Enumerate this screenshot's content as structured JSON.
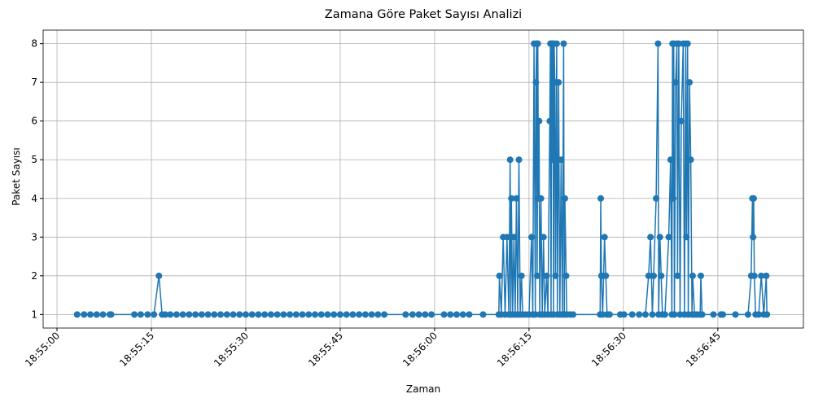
{
  "chart_data": {
    "type": "line",
    "title": "Zamana Göre Paket Sayısı Analizi",
    "x_label": "Zaman",
    "y_label": "Paket Sayısı",
    "x": [
      "18:55:03.2",
      "18:55:04.3",
      "18:55:05.3",
      "18:55:06.3",
      "18:55:07.3",
      "18:55:08.4",
      "18:55:08.6",
      "18:55:12.3",
      "18:55:13.3",
      "18:55:14.4",
      "18:55:15.4",
      "18:55:16.2",
      "18:55:16.7",
      "18:55:17.2",
      "18:55:18",
      "18:55:19",
      "18:55:20",
      "18:55:21",
      "18:55:22",
      "18:55:23",
      "18:55:24",
      "18:55:25",
      "18:55:26",
      "18:55:27",
      "18:55:28",
      "18:55:29",
      "18:55:30",
      "18:55:31",
      "18:55:32",
      "18:55:33",
      "18:55:34",
      "18:55:35",
      "18:55:36",
      "18:55:37",
      "18:55:38",
      "18:55:39",
      "18:55:40",
      "18:55:41",
      "18:55:42",
      "18:55:43",
      "18:55:44",
      "18:55:45",
      "18:55:46",
      "18:55:47",
      "18:55:48",
      "18:55:49",
      "18:55:50",
      "18:55:51",
      "18:55:52",
      "18:55:55.4",
      "18:55:56.5",
      "18:55:57.5",
      "18:55:58.5",
      "18:55:59.5",
      "18:56:01.5",
      "18:56:02.5",
      "18:56:03.5",
      "18:56:04.5",
      "18:56:05.5",
      "18:56:07.7",
      "18:56:10.2",
      "18:56:10.3",
      "18:56:10.6",
      "18:56:10.9",
      "18:56:11.2",
      "18:56:11.5",
      "18:56:11.8",
      "18:56:12.0",
      "18:56:12.1",
      "18:56:12.2",
      "18:56:12.4",
      "18:56:12.6",
      "18:56:12.8",
      "18:56:13.0",
      "18:56:13.2",
      "18:56:13.4",
      "18:56:13.6",
      "18:56:13.8",
      "18:56:14.0",
      "18:56:14.5",
      "18:56:15.0",
      "18:56:15.4",
      "18:56:15.6",
      "18:56:15.8",
      "18:56:16.0",
      "18:56:16.1",
      "18:56:16.2",
      "18:56:16.3",
      "18:56:16.4",
      "18:56:16.5",
      "18:56:16.6",
      "18:56:16.7",
      "18:56:16.9",
      "18:56:17.1",
      "18:56:17.3",
      "18:56:17.5",
      "18:56:17.8",
      "18:56:18.0",
      "18:56:18.3",
      "18:56:18.4",
      "18:56:18.5",
      "18:56:18.6",
      "18:56:18.7",
      "18:56:18.8",
      "18:56:18.9",
      "18:56:19.0",
      "18:56:19.1",
      "18:56:19.2",
      "18:56:19.4",
      "18:56:19.5",
      "18:56:19.7",
      "18:56:19.9",
      "18:56:20.1",
      "18:56:20.3",
      "18:56:20.5",
      "18:56:20.6",
      "18:56:20.7",
      "18:56:20.9",
      "18:56:21.0",
      "18:56:21.5",
      "18:56:22.0",
      "18:56:26.3",
      "18:56:26.4",
      "18:56:26.5",
      "18:56:26.7",
      "18:56:27.0",
      "18:56:27.2",
      "18:56:27.4",
      "18:56:27.8",
      "18:56:29.5",
      "18:56:30.1",
      "18:56:31.4",
      "18:56:32.5",
      "18:56:33.5",
      "18:56:34.0",
      "18:56:34.3",
      "18:56:34.6",
      "18:56:34.8",
      "18:56:35.2",
      "18:56:35.5",
      "18:56:35.6",
      "18:56:35.8",
      "18:56:36.0",
      "18:56:36.2",
      "18:56:36.6",
      "18:56:37.2",
      "18:56:37.5",
      "18:56:37.7",
      "18:56:37.8",
      "18:56:37.9",
      "18:56:38.0",
      "18:56:38.1",
      "18:56:38.3",
      "18:56:38.5",
      "18:56:38.6",
      "18:56:38.8",
      "18:56:39.0",
      "18:56:39.2",
      "18:56:39.5",
      "18:56:39.7",
      "18:56:39.9",
      "18:56:40.0",
      "18:56:40.2",
      "18:56:40.3",
      "18:56:40.5",
      "18:56:40.7",
      "18:56:40.9",
      "18:56:41.0",
      "18:56:41.3",
      "18:56:41.7",
      "18:56:42.2",
      "18:56:42.3",
      "18:56:42.5",
      "18:56:44.3",
      "18:56:45.5",
      "18:56:45.8",
      "18:56:47.8",
      "18:56:49.8",
      "18:56:50.3",
      "18:56:50.5",
      "18:56:50.6",
      "18:56:50.7",
      "18:56:50.8",
      "18:56:51.0",
      "18:56:51.5",
      "18:56:51.9",
      "18:56:52.3",
      "18:56:52.7",
      "18:56:52.8"
    ],
    "values": [
      1,
      1,
      1,
      1,
      1,
      1,
      1,
      1,
      1,
      1,
      1,
      2,
      1,
      1,
      1,
      1,
      1,
      1,
      1,
      1,
      1,
      1,
      1,
      1,
      1,
      1,
      1,
      1,
      1,
      1,
      1,
      1,
      1,
      1,
      1,
      1,
      1,
      1,
      1,
      1,
      1,
      1,
      1,
      1,
      1,
      1,
      1,
      1,
      1,
      1,
      1,
      1,
      1,
      1,
      1,
      1,
      1,
      1,
      1,
      1,
      1,
      2,
      1,
      3,
      1,
      3,
      1,
      5,
      1,
      4,
      1,
      3,
      1,
      4,
      1,
      5,
      1,
      2,
      1,
      1,
      1,
      3,
      1,
      8,
      1,
      7,
      8,
      2,
      8,
      4,
      6,
      1,
      4,
      1,
      3,
      1,
      2,
      1,
      6,
      8,
      1,
      8,
      5,
      8,
      1,
      8,
      7,
      2,
      8,
      1,
      7,
      1,
      5,
      1,
      8,
      1,
      4,
      2,
      1,
      1,
      1,
      1,
      4,
      2,
      1,
      3,
      2,
      1,
      1,
      1,
      1,
      1,
      1,
      1,
      2,
      3,
      1,
      2,
      4,
      8,
      1,
      3,
      2,
      1,
      1,
      3,
      5,
      1,
      8,
      4,
      8,
      1,
      7,
      8,
      2,
      8,
      1,
      6,
      8,
      1,
      8,
      3,
      8,
      1,
      7,
      5,
      1,
      2,
      1,
      1,
      1,
      2,
      1,
      1,
      1,
      1,
      1,
      1,
      2,
      4,
      3,
      4,
      2,
      1,
      1,
      2,
      1,
      2,
      1
    ],
    "color": "#1f77b4",
    "xlim": [
      "18:54:57.8",
      "18:56:58.6"
    ],
    "xticks": [
      "18:55:00",
      "18:55:15",
      "18:55:30",
      "18:55:45",
      "18:56:00",
      "18:56:15",
      "18:56:30",
      "18:56:45"
    ],
    "ylim": [
      0.65,
      8.35
    ],
    "yticks": [
      1,
      2,
      3,
      4,
      5,
      6,
      7,
      8
    ],
    "grid": true
  }
}
